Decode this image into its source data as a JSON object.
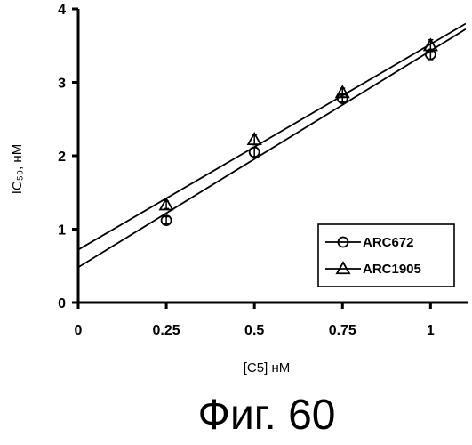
{
  "chart_data": {
    "type": "scatter",
    "xlabel": "[C5] нМ",
    "ylabel": "IC₅₀, нМ",
    "xlim": [
      0,
      1.1
    ],
    "ylim": [
      0,
      4
    ],
    "x_ticks": [
      "0",
      "0.25",
      "0.5",
      "0.75",
      "1"
    ],
    "y_ticks": [
      "0",
      "1",
      "2",
      "3",
      "4"
    ],
    "grid": false,
    "legend_position": "bottom-right",
    "series": [
      {
        "name": "ARC672",
        "marker": "circle",
        "x": [
          0.25,
          0.5,
          0.75,
          1.0
        ],
        "y": [
          1.12,
          2.05,
          2.78,
          3.38
        ],
        "err": [
          0.05,
          0.06,
          0.05,
          0.07
        ],
        "fit": {
          "slope": 2.95,
          "intercept": 0.48
        }
      },
      {
        "name": "ARC1905",
        "marker": "triangle",
        "x": [
          0.25,
          0.5,
          0.75,
          1.0
        ],
        "y": [
          1.33,
          2.22,
          2.86,
          3.5
        ],
        "err": [
          0.05,
          0.07,
          0.06,
          0.08
        ],
        "fit": {
          "slope": 2.8,
          "intercept": 0.72
        }
      }
    ]
  },
  "caption": "Фиг. 60"
}
